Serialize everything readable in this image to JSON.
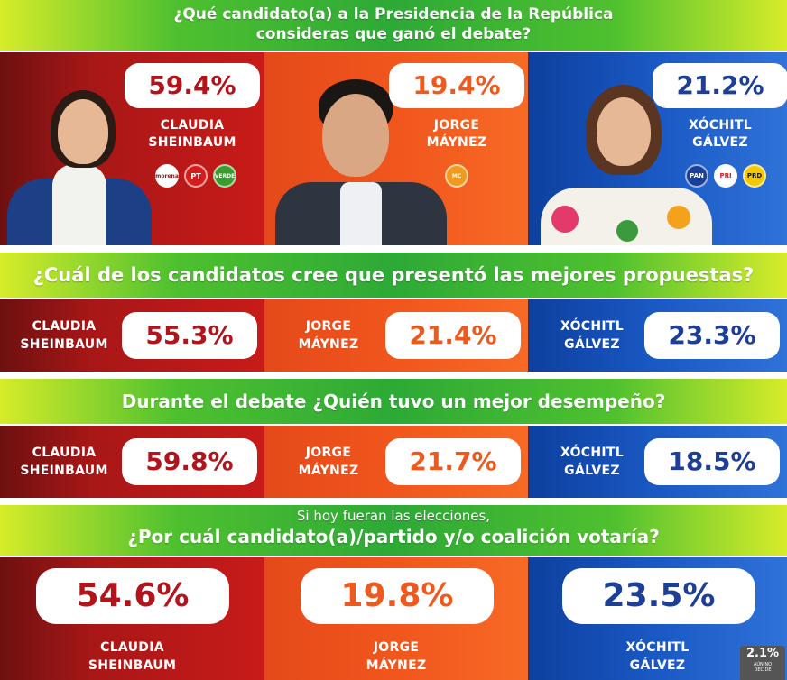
{
  "questions": {
    "q1_line1": "¿Qué candidato(a) a la Presidencia de la República",
    "q1_line2": "consideras que ganó el debate?",
    "q2": "¿Cuál de los candidatos cree que presentó las mejores propuestas?",
    "q3": "Durante el debate ¿Quién tuvo un mejor desempeño?",
    "q4_pre": "Si hoy fueran las elecciones,",
    "q4_main": "¿Por cuál candidato(a)/partido y/o coalición votaría?"
  },
  "candidates": {
    "sheinbaum": {
      "line1": "CLAUDIA",
      "line2": "SHEINBAUM",
      "color": "#c81b18"
    },
    "maynez": {
      "line1": "JORGE",
      "line2": "MÁYNEZ",
      "color": "#f1561d"
    },
    "galvez": {
      "line1": "XÓCHITL",
      "line2": "GÁLVEZ",
      "color": "#1a59c4"
    }
  },
  "party_logos": {
    "sheinbaum": [
      "morena",
      "PT",
      "VERDE"
    ],
    "maynez": [
      "MC"
    ],
    "galvez": [
      "PAN",
      "PRI",
      "PRD"
    ]
  },
  "undecided": {
    "value": "2.1%",
    "label_line1": "AÚN NO",
    "label_line2": "DECIDE"
  },
  "chart_data": [
    {
      "type": "bar",
      "title": "¿Qué candidato(a) a la Presidencia de la República consideras que ganó el debate?",
      "categories": [
        "CLAUDIA SHEINBAUM",
        "JORGE MÁYNEZ",
        "XÓCHITL GÁLVEZ"
      ],
      "values": [
        59.4,
        19.4,
        21.2
      ],
      "labels": [
        "59.4%",
        "19.4%",
        "21.2%"
      ]
    },
    {
      "type": "bar",
      "title": "¿Cuál de los candidatos cree que presentó las mejores propuestas?",
      "categories": [
        "CLAUDIA SHEINBAUM",
        "JORGE MÁYNEZ",
        "XÓCHITL GÁLVEZ"
      ],
      "values": [
        55.3,
        21.4,
        23.3
      ],
      "labels": [
        "55.3%",
        "21.4%",
        "23.3%"
      ]
    },
    {
      "type": "bar",
      "title": "Durante el debate ¿Quién tuvo un mejor desempeño?",
      "categories": [
        "CLAUDIA SHEINBAUM",
        "JORGE MÁYNEZ",
        "XÓCHITL GÁLVEZ"
      ],
      "values": [
        59.8,
        21.7,
        18.5
      ],
      "labels": [
        "59.8%",
        "21.7%",
        "18.5%"
      ]
    },
    {
      "type": "bar",
      "title": "Si hoy fueran las elecciones, ¿Por cuál candidato(a)/partido y/o coalición votaría?",
      "categories": [
        "CLAUDIA SHEINBAUM",
        "JORGE MÁYNEZ",
        "XÓCHITL GÁLVEZ",
        "AÚN NO DECIDE"
      ],
      "values": [
        54.6,
        19.8,
        23.5,
        2.1
      ],
      "labels": [
        "54.6%",
        "19.8%",
        "23.5%",
        "2.1%"
      ]
    }
  ]
}
